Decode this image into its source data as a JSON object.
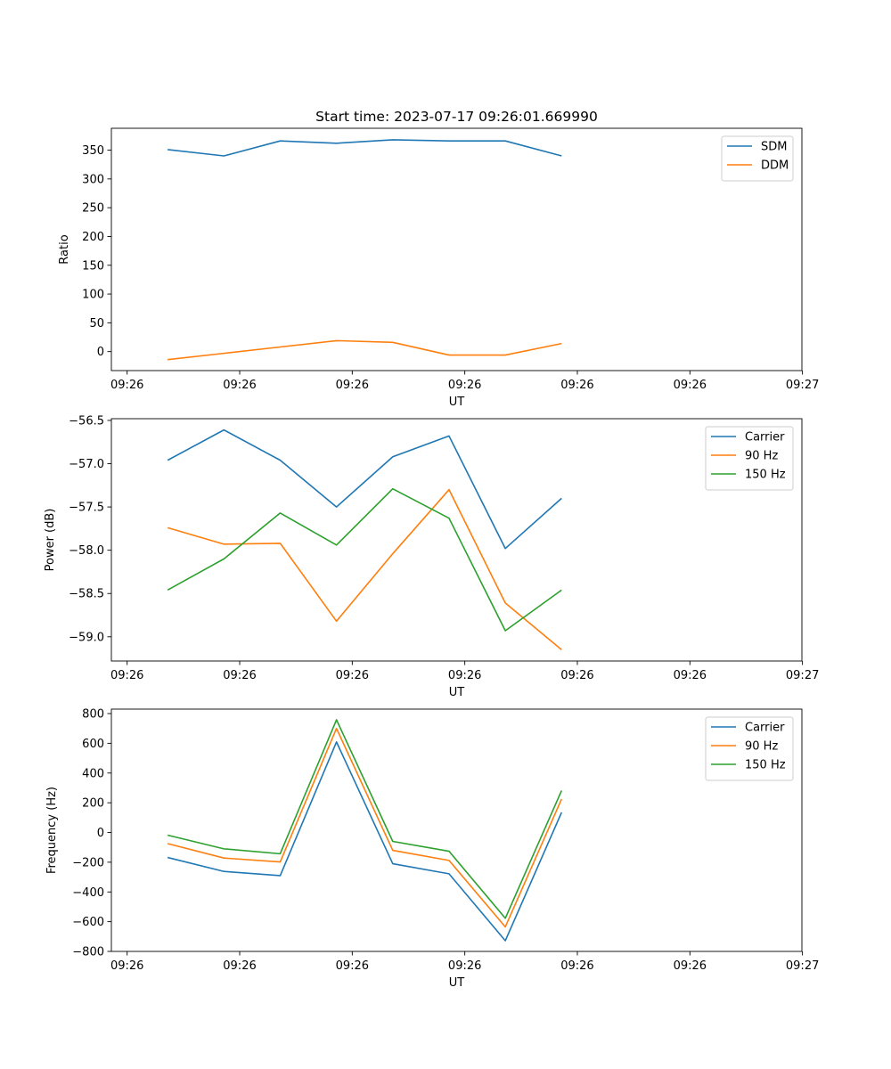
{
  "figure": {
    "title": "Start time: 2023-07-17 09:26:01.669990"
  },
  "chart_data": [
    {
      "type": "line",
      "title": "Start time: 2023-07-17 09:26:01.669990",
      "xlabel": "UT",
      "ylabel": "Ratio",
      "x": [
        1,
        2,
        3,
        4,
        5,
        6,
        7,
        8
      ],
      "xlim": [
        0,
        12.27
      ],
      "xticks": [
        0.28,
        2.28,
        4.28,
        6.28,
        8.28,
        10.28,
        12.28
      ],
      "xtick_labels": [
        "09:26",
        "09:26",
        "09:26",
        "09:26",
        "09:26",
        "09:26",
        "09:27"
      ],
      "ylim": [
        -33,
        388
      ],
      "yticks": [
        0,
        50,
        100,
        150,
        200,
        250,
        300,
        350
      ],
      "ytick_labels": [
        "0",
        "50",
        "100",
        "150",
        "200",
        "250",
        "300",
        "350"
      ],
      "legend_position": "top-right",
      "grid": false,
      "series": [
        {
          "name": "SDM",
          "color": "#1f77b4",
          "values": [
            351,
            340,
            366,
            362,
            368,
            366,
            366,
            340
          ]
        },
        {
          "name": "DDM",
          "color": "#ff7f0e",
          "values": [
            -14,
            -3,
            8,
            19,
            16,
            -6,
            -6,
            14
          ]
        }
      ]
    },
    {
      "type": "line",
      "xlabel": "UT",
      "ylabel": "Power (dB)",
      "x": [
        1,
        2,
        3,
        4,
        5,
        6,
        7,
        8
      ],
      "xlim": [
        0,
        12.27
      ],
      "xticks": [
        0.28,
        2.28,
        4.28,
        6.28,
        8.28,
        10.28,
        12.28
      ],
      "xtick_labels": [
        "09:26",
        "09:26",
        "09:26",
        "09:26",
        "09:26",
        "09:26",
        "09:27"
      ],
      "ylim": [
        -59.28,
        -56.48
      ],
      "yticks": [
        -59.0,
        -58.5,
        -58.0,
        -57.5,
        -57.0,
        -56.5
      ],
      "ytick_labels": [
        "−59.0",
        "−58.5",
        "−58.0",
        "−57.5",
        "−57.0",
        "−56.5"
      ],
      "legend_position": "top-right",
      "grid": false,
      "series": [
        {
          "name": "Carrier",
          "color": "#1f77b4",
          "values": [
            -56.96,
            -56.61,
            -56.96,
            -57.5,
            -56.92,
            -56.68,
            -57.98,
            -57.4
          ]
        },
        {
          "name": "90 Hz",
          "color": "#ff7f0e",
          "values": [
            -57.74,
            -57.93,
            -57.92,
            -58.82,
            -58.04,
            -57.3,
            -58.61,
            -59.15
          ]
        },
        {
          "name": "150 Hz",
          "color": "#2ca02c",
          "values": [
            -58.46,
            -58.1,
            -57.57,
            -57.94,
            -57.29,
            -57.63,
            -58.93,
            -58.46
          ]
        }
      ]
    },
    {
      "type": "line",
      "xlabel": "UT",
      "ylabel": "Frequency (Hz)",
      "x": [
        1,
        2,
        3,
        4,
        5,
        6,
        7,
        8
      ],
      "xlim": [
        0,
        12.27
      ],
      "xticks": [
        0.28,
        2.28,
        4.28,
        6.28,
        8.28,
        10.28,
        12.28
      ],
      "xtick_labels": [
        "09:26",
        "09:26",
        "09:26",
        "09:26",
        "09:26",
        "09:26",
        "09:27"
      ],
      "ylim": [
        -800,
        830
      ],
      "yticks": [
        -800,
        -600,
        -400,
        -200,
        0,
        200,
        400,
        600,
        800
      ],
      "ytick_labels": [
        "−800",
        "−600",
        "−400",
        "−200",
        "0",
        "200",
        "400",
        "600",
        "800"
      ],
      "legend_position": "top-right",
      "grid": false,
      "series": [
        {
          "name": "Carrier",
          "color": "#1f77b4",
          "values": [
            -168,
            -262,
            -290,
            609,
            -210,
            -278,
            -728,
            135
          ]
        },
        {
          "name": "90 Hz",
          "color": "#ff7f0e",
          "values": [
            -75,
            -172,
            -198,
            700,
            -120,
            -188,
            -635,
            225
          ]
        },
        {
          "name": "150 Hz",
          "color": "#2ca02c",
          "values": [
            -18,
            -110,
            -143,
            758,
            -60,
            -126,
            -577,
            282
          ]
        }
      ]
    }
  ]
}
